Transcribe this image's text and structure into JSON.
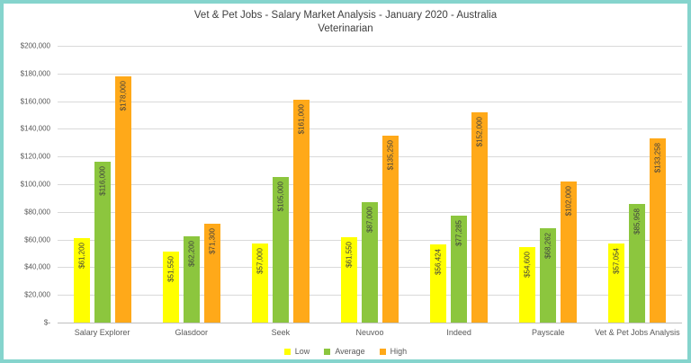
{
  "window": {
    "border_color": "#85d4cd",
    "background": "#ffffff"
  },
  "chart_data": {
    "type": "bar",
    "title": "Vet & Pet Jobs - Salary Market Analysis - January 2020 - Australia",
    "subtitle": "Veterinarian",
    "categories": [
      "Salary Explorer",
      "Glasdoor",
      "Seek",
      "Neuvoo",
      "Indeed",
      "Payscale",
      "Vet & Pet Jobs Analysis"
    ],
    "series": [
      {
        "name": "Low",
        "color": "#ffff00",
        "values": [
          61200,
          51550,
          57000,
          61550,
          56424,
          54600,
          57054
        ]
      },
      {
        "name": "Average",
        "color": "#8cc63e",
        "values": [
          116000,
          62200,
          105000,
          87000,
          77285,
          68262,
          85958
        ]
      },
      {
        "name": "High",
        "color": "#ffa919",
        "values": [
          178000,
          71300,
          161000,
          135250,
          152000,
          102000,
          133258
        ]
      }
    ],
    "data_labels": {
      "Low": [
        "$61,200",
        "$51,550",
        "$57,000",
        "$61,550",
        "$56,424",
        "$54,600",
        "$57,054"
      ],
      "Average": [
        "$116,000",
        "$62,200",
        "$105,000",
        "$87,000",
        "$77,285",
        "$68,262",
        "$85,958"
      ],
      "High": [
        "$178,000",
        "$71,300",
        "$161,000",
        "$135,250",
        "$152,000",
        "$102,000",
        "$133,258"
      ]
    },
    "ylabel": "",
    "xlabel": "",
    "ylim": [
      0,
      200000
    ],
    "ytick_step": 20000,
    "ytick_labels": [
      "$-",
      "$20,000",
      "$40,000",
      "$60,000",
      "$80,000",
      "$100,000",
      "$120,000",
      "$140,000",
      "$160,000",
      "$180,000",
      "$200,000"
    ],
    "grid": true,
    "legend_position": "bottom",
    "legend_entries": [
      "Low",
      "Average",
      "High"
    ]
  }
}
